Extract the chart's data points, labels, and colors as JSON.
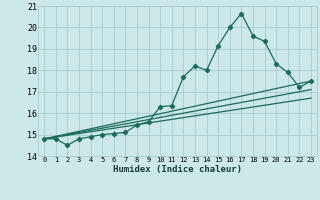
{
  "xlabel": "Humidex (Indice chaleur)",
  "background_color": "#cce8e8",
  "grid_color": "#aacccc",
  "line_color": "#1a6b5a",
  "xlim": [
    -0.5,
    23.5
  ],
  "ylim": [
    14,
    21
  ],
  "yticks": [
    14,
    15,
    16,
    17,
    18,
    19,
    20,
    21
  ],
  "xticks": [
    0,
    1,
    2,
    3,
    4,
    5,
    6,
    7,
    8,
    9,
    10,
    11,
    12,
    13,
    14,
    15,
    16,
    17,
    18,
    19,
    20,
    21,
    22,
    23
  ],
  "line1_x": [
    0,
    1,
    2,
    3,
    4,
    5,
    6,
    7,
    8,
    9,
    10,
    11,
    12,
    13,
    14,
    15,
    16,
    17,
    18,
    19,
    20,
    21,
    22,
    23
  ],
  "line1_y": [
    14.8,
    14.8,
    14.5,
    14.8,
    14.9,
    15.0,
    15.05,
    15.1,
    15.45,
    15.6,
    16.3,
    16.35,
    17.7,
    18.2,
    18.0,
    19.15,
    20.0,
    20.65,
    19.6,
    19.35,
    18.3,
    17.9,
    17.2,
    17.5
  ],
  "line2_x": [
    0,
    23
  ],
  "line2_y": [
    14.8,
    17.5
  ],
  "line3_x": [
    0,
    23
  ],
  "line3_y": [
    14.8,
    17.1
  ],
  "line4_x": [
    0,
    23
  ],
  "line4_y": [
    14.8,
    16.7
  ]
}
